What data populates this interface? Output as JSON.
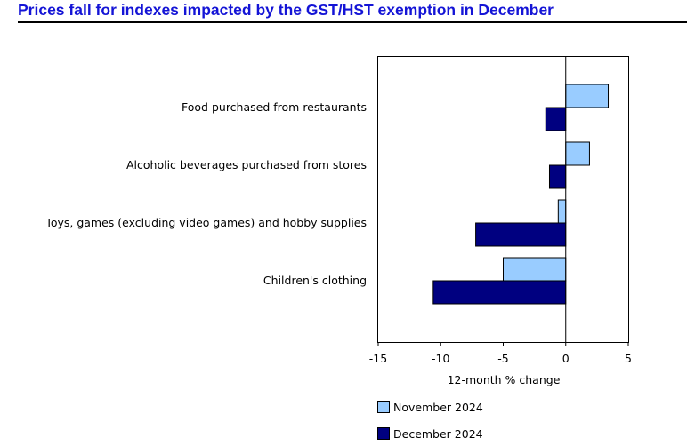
{
  "title": "Prices fall for indexes impacted by the GST/HST exemption in December",
  "chart_data": {
    "type": "bar",
    "orientation": "horizontal",
    "categories": [
      "Food purchased from restaurants",
      "Alcoholic beverages purchased from stores",
      "Toys, games (excluding video games) and hobby supplies",
      "Children's clothing"
    ],
    "series": [
      {
        "name": "November 2024",
        "values": [
          3.4,
          1.9,
          -0.6,
          -5.0
        ],
        "color": "#99ccff"
      },
      {
        "name": "December 2024",
        "values": [
          -1.6,
          -1.3,
          -7.2,
          -10.6
        ],
        "color": "#000080"
      }
    ],
    "xlabel": "12-month % change",
    "xlim": [
      -15,
      5
    ],
    "xticks": [
      -15,
      -10,
      -5,
      0,
      5
    ],
    "grid": false,
    "legend_position": "bottom"
  }
}
